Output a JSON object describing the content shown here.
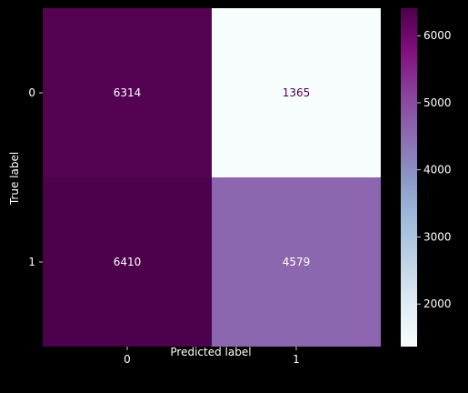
{
  "chart_data": {
    "type": "heatmap",
    "title": "",
    "xlabel": "Predicted label",
    "ylabel": "True label",
    "x_categories": [
      "0",
      "1"
    ],
    "y_categories": [
      "0",
      "1"
    ],
    "values": [
      [
        6314,
        1365
      ],
      [
        6410,
        4579
      ]
    ],
    "colormap": "BuPu",
    "colorbar": {
      "min": 1365,
      "max": 6410,
      "ticks": [
        2000,
        3000,
        4000,
        5000,
        6000
      ],
      "tick_labels": [
        "2000",
        "3000",
        "4000",
        "5000",
        "6000"
      ]
    },
    "background": "#000000",
    "foreground": "#ffffff",
    "low_value_text_color": "#4d004b",
    "grid": false
  }
}
